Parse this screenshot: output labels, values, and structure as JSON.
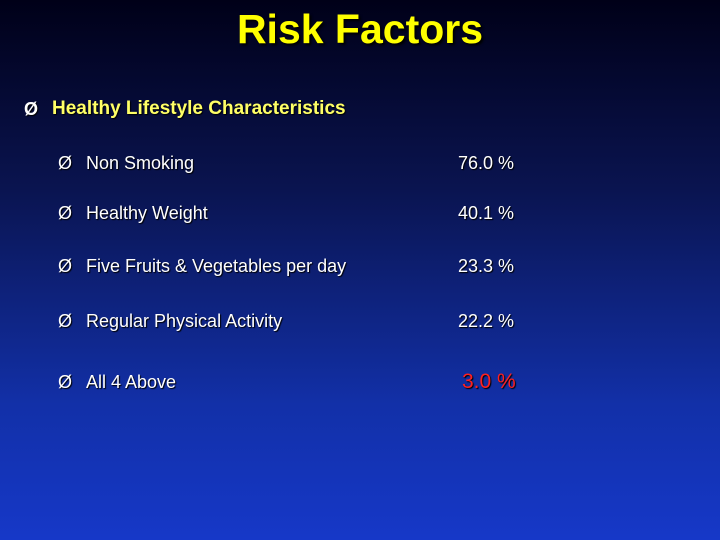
{
  "slide": {
    "title": "Risk Factors",
    "section_heading": "Healthy Lifestyle Characteristics",
    "bullet_glyph": "Ø",
    "rows": [
      {
        "label": "Non Smoking",
        "value": "76.0 %"
      },
      {
        "label": "Healthy Weight",
        "value": "40.1 %"
      },
      {
        "label": "Five Fruits & Vegetables per day",
        "value": "23.3 %"
      },
      {
        "label": "Regular Physical Activity",
        "value": "22.2 %"
      },
      {
        "label": "All 4 Above",
        "value": "3.0 %"
      }
    ]
  },
  "colors": {
    "title": "#ffff00",
    "heading": "#ffff66",
    "text": "#ffffff",
    "highlight_value": "#ff2020"
  }
}
